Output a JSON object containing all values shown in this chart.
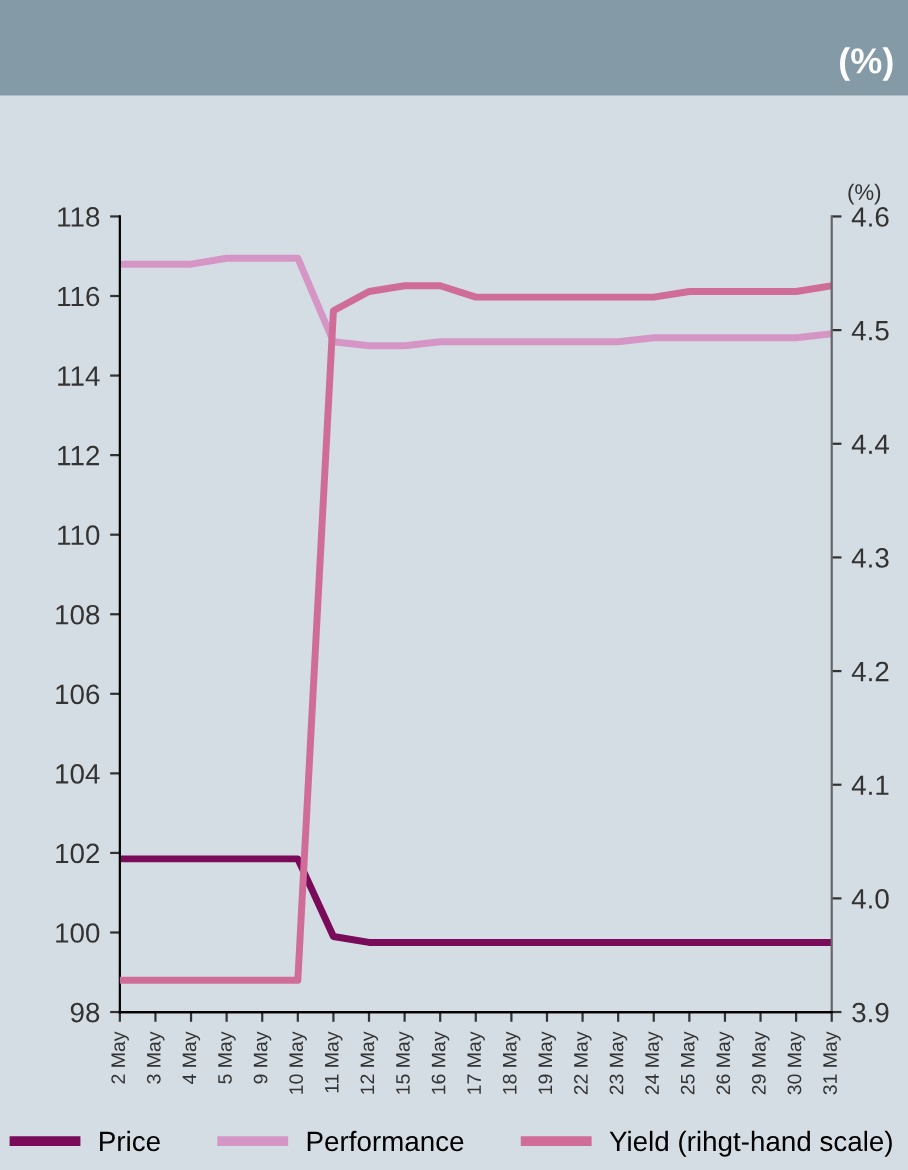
{
  "chart_data": {
    "type": "line",
    "title": "(%)",
    "y2label": "(%)",
    "categories": [
      "2 May",
      "3 May",
      "4 May",
      "5 May",
      "9 May",
      "10 May",
      "11 May",
      "12 May",
      "15 May",
      "16 May",
      "17 May",
      "18 May",
      "19 May",
      "22 May",
      "23 May",
      "24 May",
      "25 May",
      "26 May",
      "29 May",
      "30 May",
      "31 May"
    ],
    "series": [
      {
        "name": "Price",
        "color": "#7a0a5a",
        "values": [
          101.85,
          101.85,
          101.85,
          101.85,
          101.85,
          101.85,
          99.9,
          99.75,
          99.75,
          99.75,
          99.75,
          99.75,
          99.75,
          99.75,
          99.75,
          99.75,
          99.75,
          99.75,
          99.75,
          99.75,
          99.75
        ]
      },
      {
        "name": "Performance",
        "color": "#d596c6",
        "values": [
          116.8,
          116.8,
          116.8,
          116.95,
          116.95,
          116.95,
          114.85,
          114.75,
          114.75,
          114.85,
          114.85,
          114.85,
          114.85,
          114.85,
          114.85,
          114.95,
          114.95,
          114.95,
          114.95,
          114.95,
          115.05
        ]
      },
      {
        "name": "Yield (rihgt-hand scale)",
        "color": "#d06c98",
        "axis": "y2",
        "values": [
          3.928,
          3.928,
          3.928,
          3.928,
          3.928,
          3.928,
          4.517,
          4.534,
          4.539,
          4.539,
          4.529,
          4.529,
          4.529,
          4.529,
          4.529,
          4.529,
          4.534,
          4.534,
          4.534,
          4.534,
          4.539
        ]
      }
    ],
    "ylim": [
      98,
      118
    ],
    "yticks": [
      98,
      100,
      102,
      104,
      106,
      108,
      110,
      112,
      114,
      116,
      118
    ],
    "y2lim": [
      3.9,
      4.6
    ],
    "y2ticks": [
      3.9,
      {
        "value": 4,
        "label": "4.0"
      },
      4.1,
      4.2,
      4.3,
      4.4,
      4.5,
      4.6
    ],
    "grid": false,
    "legend": "bottom",
    "marker": "none",
    "line_style": "solid"
  }
}
